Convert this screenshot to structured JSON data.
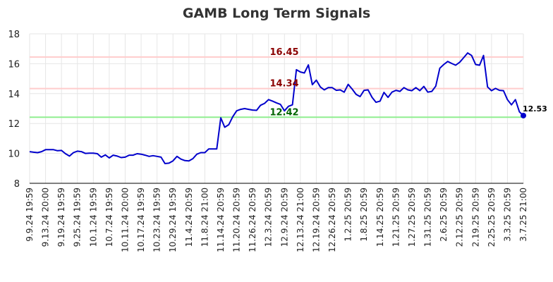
{
  "chart_data": {
    "type": "line",
    "title": "GAMB Long Term Signals",
    "xlabel": "",
    "ylabel": "",
    "ylim": [
      8,
      18
    ],
    "yticks": [
      "8",
      "10",
      "12",
      "14",
      "16",
      "18"
    ],
    "grid": true,
    "line_color": "#0000cc",
    "x_tick_labels": [
      "9.9.24 19:59",
      "9.13.24 20:00",
      "9.19.24 19:59",
      "9.25.24 19:59",
      "10.1.24 19:59",
      "10.7.24 19:59",
      "10.11.24 20:00",
      "10.17.24 19:59",
      "10.23.24 19:59",
      "10.29.24 19:59",
      "11.4.24 20:59",
      "11.8.24 21:00",
      "11.14.24 20:59",
      "11.20.24 20:59",
      "11.26.24 20:59",
      "12.3.24 20:59",
      "12.9.24 20:59",
      "12.13.24 21:00",
      "12.19.24 20:59",
      "12.26.24 20:59",
      "1.2.25 20:59",
      "1.8.25 20:59",
      "1.14.25 20:59",
      "1.21.25 20:59",
      "1.27.25 20:59",
      "1.31.25 20:59",
      "2.6.25 20:59",
      "2.12.25 20:59",
      "2.19.25 20:59",
      "2.25.25 20:59",
      "3.3.25 20:59",
      "3.7.25 21:00"
    ],
    "values": [
      10.12,
      10.08,
      10.05,
      10.12,
      10.25,
      10.25,
      10.25,
      10.18,
      10.2,
      9.98,
      9.82,
      10.05,
      10.15,
      10.12,
      10.0,
      10.02,
      10.02,
      9.98,
      9.75,
      9.9,
      9.7,
      9.88,
      9.82,
      9.72,
      9.75,
      9.88,
      9.88,
      9.98,
      9.95,
      9.88,
      9.8,
      9.85,
      9.8,
      9.75,
      9.32,
      9.35,
      9.5,
      9.8,
      9.62,
      9.52,
      9.5,
      9.65,
      9.95,
      10.05,
      10.05,
      10.3,
      10.3,
      10.3,
      12.38,
      11.75,
      11.92,
      12.45,
      12.85,
      12.95,
      13.0,
      12.95,
      12.9,
      12.88,
      13.22,
      13.35,
      13.6,
      13.5,
      13.38,
      13.28,
      12.85,
      13.15,
      13.25,
      15.6,
      15.45,
      15.38,
      15.92,
      14.6,
      14.9,
      14.45,
      14.25,
      14.4,
      14.4,
      14.22,
      14.25,
      14.1,
      14.62,
      14.3,
      13.95,
      13.8,
      14.22,
      14.25,
      13.75,
      13.42,
      13.5,
      14.08,
      13.75,
      14.1,
      14.22,
      14.15,
      14.4,
      14.25,
      14.2,
      14.4,
      14.2,
      14.48,
      14.1,
      14.15,
      14.5,
      15.7,
      15.95,
      16.15,
      16.02,
      15.9,
      16.1,
      16.4,
      16.72,
      16.55,
      15.95,
      15.9,
      16.55,
      14.45,
      14.2,
      14.35,
      14.22,
      14.2,
      13.6,
      13.25,
      13.6,
      12.78,
      12.53
    ],
    "levels": [
      {
        "value": 16.45,
        "label": "16.45",
        "line_color": "#ffcccc",
        "text_color": "#8b0000"
      },
      {
        "value": 14.34,
        "label": "14.34",
        "line_color": "#ffcccc",
        "text_color": "#8b0000"
      },
      {
        "value": 12.42,
        "label": "12.42",
        "line_color": "#90ee90",
        "text_color": "#006400"
      }
    ],
    "last_value_label": "12.53"
  }
}
